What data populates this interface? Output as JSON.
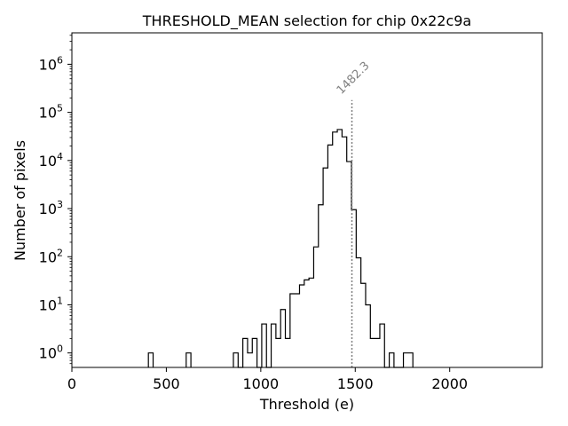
{
  "chart_data": {
    "type": "histogram",
    "title": "THRESHOLD_MEAN selection for chip 0x22c9a",
    "xlabel": "Threshold (e)",
    "ylabel": "Number of pixels",
    "xlim": [
      0,
      2490
    ],
    "xticks": [
      0,
      500,
      1000,
      1500,
      2000
    ],
    "yscale": "log",
    "ylim": [
      0.5,
      4500000
    ],
    "yticks": [
      {
        "value": 1,
        "base": "10",
        "exp": "0"
      },
      {
        "value": 10,
        "base": "10",
        "exp": "1"
      },
      {
        "value": 100,
        "base": "10",
        "exp": "2"
      },
      {
        "value": 1000,
        "base": "10",
        "exp": "3"
      },
      {
        "value": 10000,
        "base": "10",
        "exp": "4"
      },
      {
        "value": 100000,
        "base": "10",
        "exp": "5"
      },
      {
        "value": 1000000,
        "base": "10",
        "exp": "6"
      }
    ],
    "bin_width": 25,
    "bins": [
      {
        "x0": 405,
        "count": 1
      },
      {
        "x0": 605,
        "count": 1
      },
      {
        "x0": 855,
        "count": 1
      },
      {
        "x0": 880,
        "count": 0
      },
      {
        "x0": 905,
        "count": 2
      },
      {
        "x0": 930,
        "count": 1
      },
      {
        "x0": 955,
        "count": 2
      },
      {
        "x0": 980,
        "count": 0
      },
      {
        "x0": 1005,
        "count": 4
      },
      {
        "x0": 1030,
        "count": 0
      },
      {
        "x0": 1055,
        "count": 4
      },
      {
        "x0": 1080,
        "count": 2
      },
      {
        "x0": 1105,
        "count": 8
      },
      {
        "x0": 1130,
        "count": 2
      },
      {
        "x0": 1155,
        "count": 17
      },
      {
        "x0": 1180,
        "count": 17
      },
      {
        "x0": 1205,
        "count": 26
      },
      {
        "x0": 1230,
        "count": 33
      },
      {
        "x0": 1255,
        "count": 36
      },
      {
        "x0": 1280,
        "count": 160
      },
      {
        "x0": 1305,
        "count": 1200
      },
      {
        "x0": 1330,
        "count": 7000
      },
      {
        "x0": 1355,
        "count": 21000
      },
      {
        "x0": 1380,
        "count": 39000
      },
      {
        "x0": 1405,
        "count": 44000
      },
      {
        "x0": 1430,
        "count": 31000
      },
      {
        "x0": 1455,
        "count": 9500
      },
      {
        "x0": 1480,
        "count": 950
      },
      {
        "x0": 1505,
        "count": 95
      },
      {
        "x0": 1530,
        "count": 28
      },
      {
        "x0": 1555,
        "count": 10
      },
      {
        "x0": 1580,
        "count": 2
      },
      {
        "x0": 1605,
        "count": 2
      },
      {
        "x0": 1630,
        "count": 4
      },
      {
        "x0": 1655,
        "count": 0
      },
      {
        "x0": 1680,
        "count": 1
      },
      {
        "x0": 1705,
        "count": 0
      },
      {
        "x0": 1730,
        "count": 0
      },
      {
        "x0": 1755,
        "count": 1
      },
      {
        "x0": 1780,
        "count": 1
      }
    ],
    "annotation": {
      "label": "1482.3",
      "x": 1482.3,
      "line_top_count": 180000,
      "style": "dotted vertical line",
      "color": "#808080"
    },
    "line_color": "#000000"
  }
}
